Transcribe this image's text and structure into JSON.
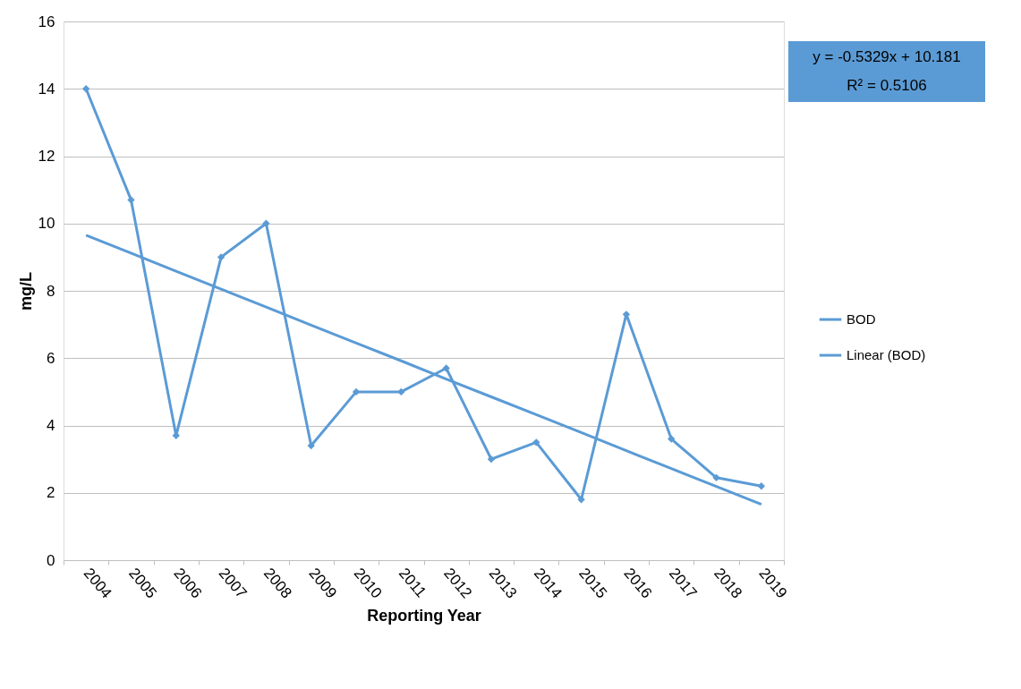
{
  "chart_data": {
    "type": "line",
    "xlabel": "Reporting Year",
    "ylabel": "mg/L",
    "categories": [
      "2004",
      "2005",
      "2006",
      "2007",
      "2008",
      "2009",
      "2010",
      "2011",
      "2012",
      "2013",
      "2014",
      "2015",
      "2016",
      "2017",
      "2018",
      "2019"
    ],
    "series": [
      {
        "name": "BOD",
        "color": "#5b9bd5",
        "marker": "diamond",
        "values": [
          14.0,
          10.7,
          3.7,
          9.0,
          10.0,
          3.4,
          5.0,
          5.0,
          5.7,
          3.0,
          3.5,
          1.8,
          7.3,
          3.6,
          2.45,
          2.2
        ]
      },
      {
        "name": "Linear (BOD)",
        "color": "#5b9bd5",
        "marker": "none",
        "values": [
          9.65,
          9.12,
          8.58,
          8.05,
          7.52,
          6.98,
          6.45,
          5.92,
          5.38,
          4.85,
          4.32,
          3.79,
          3.25,
          2.72,
          2.19,
          1.66
        ]
      }
    ],
    "ylim": [
      0,
      16
    ],
    "yticks": [
      0,
      2,
      4,
      6,
      8,
      10,
      12,
      14,
      16
    ],
    "grid": "y",
    "legend": "right",
    "line_style": "solid",
    "annotations": [
      "y = -0.5329x + 10.181",
      "R² = 0.5106"
    ]
  }
}
